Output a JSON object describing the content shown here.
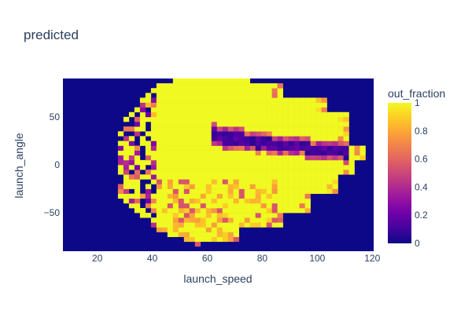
{
  "chart_data": {
    "type": "heatmap",
    "title": "predicted",
    "xlabel": "launch_speed",
    "ylabel": "launch_angle",
    "xlim": [
      7.5,
      120.5
    ],
    "ylim": [
      -90,
      90
    ],
    "x_ticks": [
      20,
      40,
      60,
      80,
      100,
      120
    ],
    "y_ticks": [
      50,
      0,
      -50
    ],
    "y_tick_labels": [
      "50",
      "0",
      "−50"
    ],
    "grid": false,
    "colorbar": {
      "title": "out_fraction",
      "range": [
        0,
        1
      ],
      "ticks": [
        1,
        0.8,
        0.6,
        0.4,
        0.2,
        0
      ],
      "tick_labels": [
        "1",
        "0.8",
        "0.6",
        "0.4",
        "0.2",
        "0"
      ],
      "colorscale": [
        "#0d0887",
        "#46039f",
        "#7201a8",
        "#9c179e",
        "#bd3786",
        "#d8576b",
        "#ed7953",
        "#fb9f3a",
        "#fdca26",
        "#f0f921"
      ]
    },
    "bin_width_x": 2,
    "bin_width_y": 5,
    "description_regions": [
      {
        "region": "outside data domain",
        "value": 0
      },
      {
        "region": "main body (speed 40-110, angle -70 to 80)",
        "value": 1
      },
      {
        "region": "line-drive band (speed 65-110, angle 10-35)",
        "value": 0.05
      },
      {
        "region": "low speed noisy edge (speed 10-40)",
        "value": "mixed 0-1"
      }
    ]
  }
}
